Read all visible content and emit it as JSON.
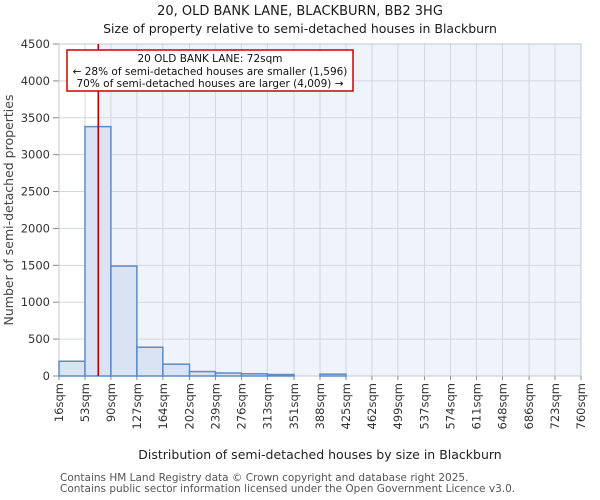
{
  "title": "20, OLD BANK LANE, BLACKBURN, BB2 3HG",
  "subtitle": "Size of property relative to semi-detached houses in Blackburn",
  "annotation": {
    "line1": "20 OLD BANK LANE: 72sqm",
    "line2": "← 28% of semi-detached houses are smaller (1,596)",
    "line3": "70% of semi-detached houses are larger (4,009) →"
  },
  "footer": {
    "line1": "Contains HM Land Registry data © Crown copyright and database right 2025.",
    "line2": "Contains public sector information licensed under the Open Government Licence v3.0."
  },
  "chart_data": {
    "type": "bar",
    "title": "20, OLD BANK LANE, BLACKBURN, BB2 3HG",
    "subtitle": "Size of property relative to semi-detached houses in Blackburn",
    "xlabel": "Distribution of semi-detached houses by size in Blackburn",
    "ylabel": "Number of semi-detached properties",
    "bin_edges": [
      16,
      53,
      90,
      127,
      164,
      202,
      239,
      276,
      313,
      351,
      388,
      425,
      462,
      499,
      537,
      574,
      611,
      648,
      686,
      723,
      760
    ],
    "x_tick_labels": [
      "16sqm",
      "53sqm",
      "90sqm",
      "127sqm",
      "164sqm",
      "202sqm",
      "239sqm",
      "276sqm",
      "313sqm",
      "351sqm",
      "388sqm",
      "425sqm",
      "462sqm",
      "499sqm",
      "537sqm",
      "574sqm",
      "611sqm",
      "648sqm",
      "686sqm",
      "723sqm",
      "760sqm"
    ],
    "values": [
      200,
      3380,
      1490,
      390,
      160,
      60,
      40,
      30,
      20,
      0,
      25,
      0,
      0,
      0,
      0,
      0,
      0,
      0,
      0,
      0
    ],
    "xlim": [
      16,
      760
    ],
    "ylim": [
      0,
      4500
    ],
    "y_ticks": [
      0,
      500,
      1000,
      1500,
      2000,
      2500,
      3000,
      3500,
      4000,
      4500
    ],
    "grid": true,
    "legend": "none",
    "marker_line": {
      "label": "20 OLD BANK LANE",
      "value_sqm": 72,
      "color": "#b30000"
    },
    "shaded_region": {
      "from_sqm": 72,
      "to_sqm": 760,
      "color": "#eff3fc"
    },
    "colors": {
      "bar_fill": "#d9e3f3",
      "bar_stroke": "#5b8cc8",
      "grid_line": "#d2d6de",
      "plot_border": "#c2c7d0",
      "annotation_border": "#cc0000"
    }
  }
}
